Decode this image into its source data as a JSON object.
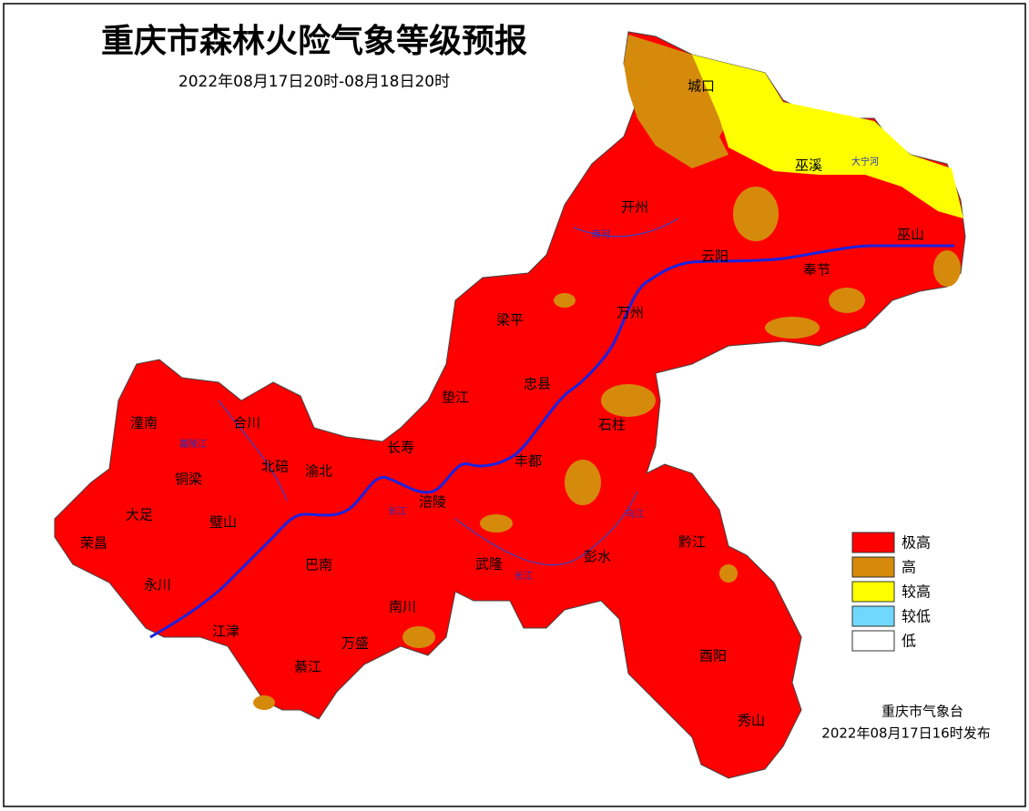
{
  "header": {
    "title": "重庆市森林火险气象等级预报",
    "subtitle": "2022年08月17日20时-08月18日20时"
  },
  "map": {
    "districts": [
      "城口",
      "巫溪",
      "开州",
      "云阳",
      "巫山",
      "奉节",
      "梁平",
      "万州",
      "忠县",
      "垫江",
      "石柱",
      "潼南",
      "合川",
      "长寿",
      "北碚",
      "渝北",
      "丰都",
      "铜梁",
      "涪陵",
      "大足",
      "璧山",
      "荣昌",
      "巴南",
      "武隆",
      "彭水",
      "黔江",
      "永川",
      "南川",
      "江津",
      "万盛",
      "綦江",
      "酉阳",
      "秀山"
    ],
    "rivers": [
      "大宁河",
      "南河",
      "长江",
      "乌江",
      "嘉陵江",
      "长江"
    ]
  },
  "legend": [
    {
      "label": "极高",
      "color": "#ff0000"
    },
    {
      "label": "高",
      "color": "#d68a0c"
    },
    {
      "label": "较高",
      "color": "#ffff00"
    },
    {
      "label": "较低",
      "color": "#70d8fc"
    },
    {
      "label": "低",
      "color": "#ffffff"
    }
  ],
  "footer": {
    "agency": "重庆市气象台",
    "issued": "2022年08月17日16时发布"
  }
}
